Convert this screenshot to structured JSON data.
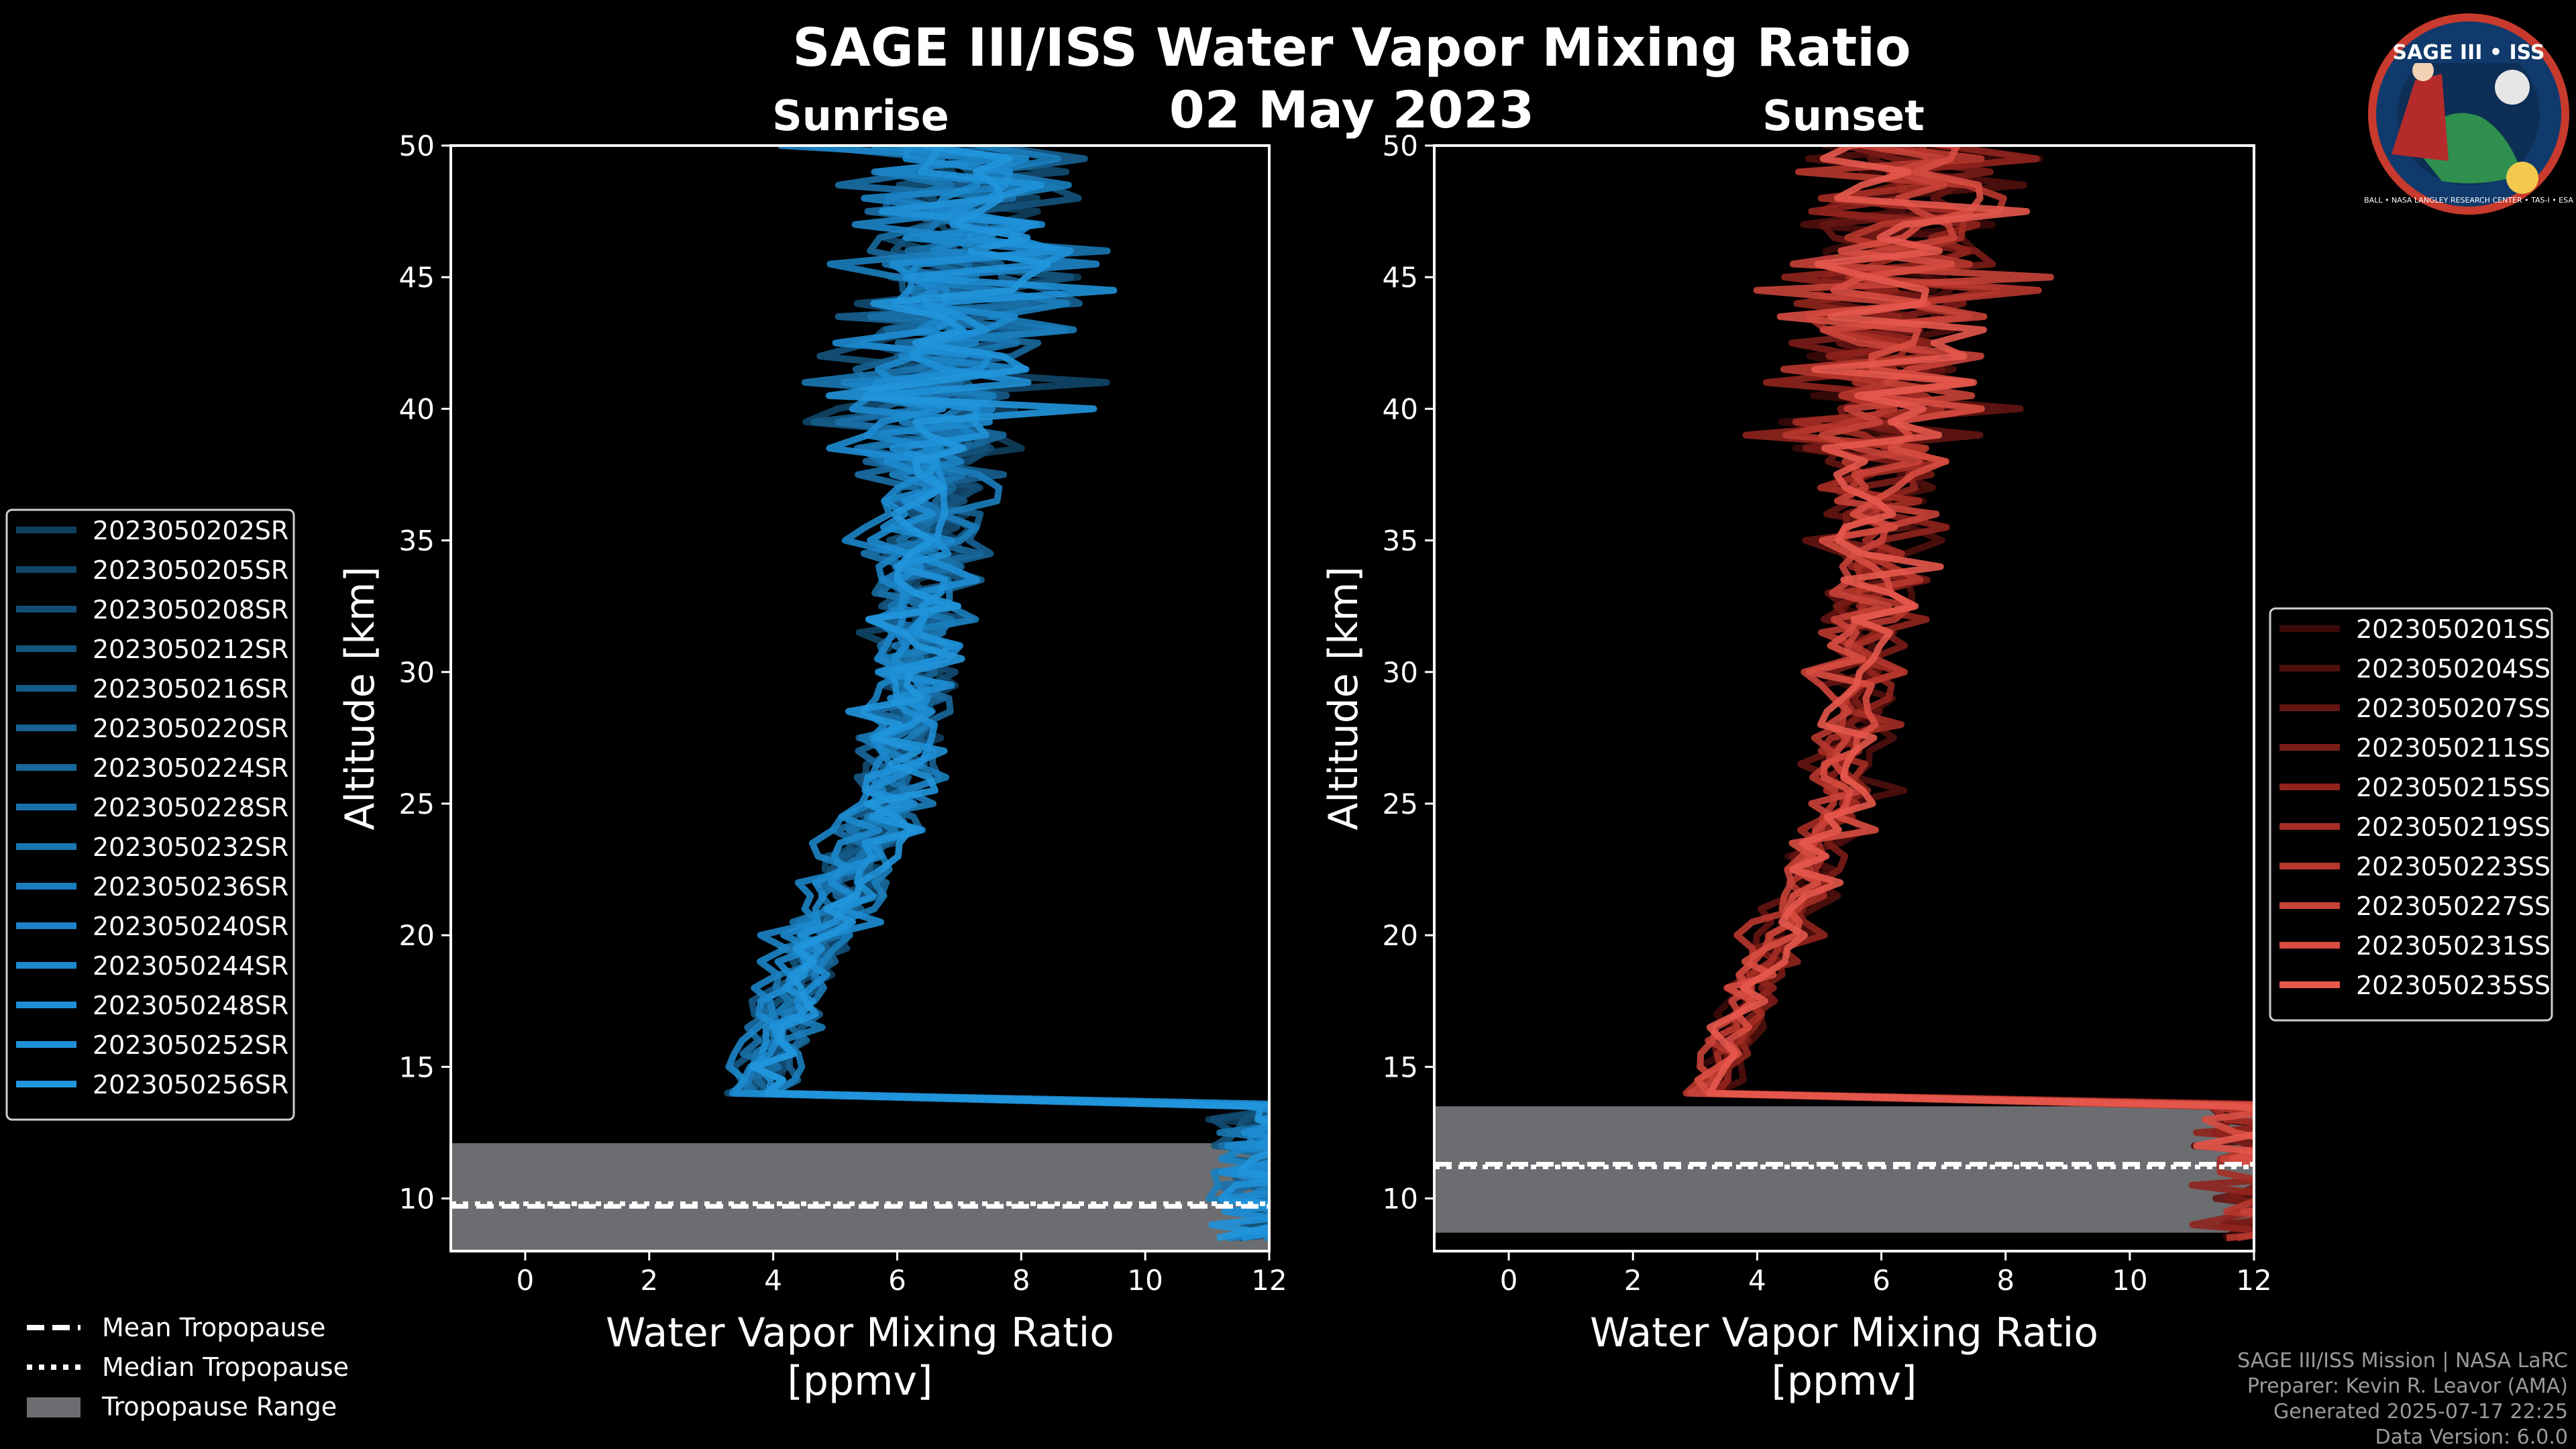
{
  "header": {
    "title": "SAGE III/ISS Water Vapor Mixing Ratio",
    "date": "02 May 2023"
  },
  "logo": {
    "text": "SAGE III • ISS",
    "ring_text": "BALL • NASA LANGLEY RESEARCH CENTER • TAS-I • ESA"
  },
  "footer": {
    "line1": "SAGE III/ISS Mission | NASA LaRC",
    "line2": "Preparer: Kevin R. Leavor (AMA)",
    "line3": "Generated 2025-07-17 22:25",
    "line4": "Data Version: 6.0.0"
  },
  "tropopause_legend": {
    "mean": "Mean Tropopause",
    "median": "Median Tropopause",
    "range": "Tropopause Range"
  },
  "colors": {
    "background": "#000000",
    "sunrise": "#1e8fd6",
    "sunset": "#e0554a",
    "tropopause_fill": "#6b6d70"
  },
  "chart_data": [
    {
      "type": "line",
      "panel": "sunrise",
      "title": "Sunrise",
      "xlabel": "Water Vapor Mixing Ratio\n[ppmv]",
      "ylabel": "Altitude [km]",
      "xlim": [
        -1.2,
        12
      ],
      "ylim": [
        8,
        50
      ],
      "xticks": [
        0,
        2,
        4,
        6,
        8,
        10,
        12
      ],
      "yticks": [
        10,
        15,
        20,
        25,
        30,
        35,
        40,
        45,
        50
      ],
      "tropopause": {
        "mean": 9.7,
        "median": 9.8,
        "range": [
          8.0,
          12.1
        ]
      },
      "series": [
        {
          "name": "2023050202SR",
          "color": "#0f3f5e"
        },
        {
          "name": "2023050205SR",
          "color": "#114668"
        },
        {
          "name": "2023050208SR",
          "color": "#124d73"
        },
        {
          "name": "2023050212SR",
          "color": "#14547d"
        },
        {
          "name": "2023050216SR",
          "color": "#155b88"
        },
        {
          "name": "2023050220SR",
          "color": "#176293"
        },
        {
          "name": "2023050224SR",
          "color": "#18699d"
        },
        {
          "name": "2023050228SR",
          "color": "#1970a8"
        },
        {
          "name": "2023050232SR",
          "color": "#1a77b2"
        },
        {
          "name": "2023050236SR",
          "color": "#1b7ebd"
        },
        {
          "name": "2023050240SR",
          "color": "#1c84c6"
        },
        {
          "name": "2023050244SR",
          "color": "#1d89ce"
        },
        {
          "name": "2023050248SR",
          "color": "#1e8dd4"
        },
        {
          "name": "2023050252SR",
          "color": "#1f91d8"
        },
        {
          "name": "2023050256SR",
          "color": "#2196dd"
        }
      ]
    },
    {
      "type": "line",
      "panel": "sunset",
      "title": "Sunset",
      "xlabel": "Water Vapor Mixing Ratio\n[ppmv]",
      "ylabel": "Altitude [km]",
      "xlim": [
        -1.2,
        12
      ],
      "ylim": [
        8,
        50
      ],
      "xticks": [
        0,
        2,
        4,
        6,
        8,
        10,
        12
      ],
      "yticks": [
        10,
        15,
        20,
        25,
        30,
        35,
        40,
        45,
        50
      ],
      "tropopause": {
        "mean": 11.3,
        "median": 11.2,
        "range": [
          8.7,
          13.5
        ]
      },
      "series": [
        {
          "name": "2023050201SS",
          "color": "#3a0a09"
        },
        {
          "name": "2023050204SS",
          "color": "#4f0f0d"
        },
        {
          "name": "2023050207SS",
          "color": "#641512"
        },
        {
          "name": "2023050211SS",
          "color": "#7a1c17"
        },
        {
          "name": "2023050215SS",
          "color": "#90241d"
        },
        {
          "name": "2023050219SS",
          "color": "#a52d25"
        },
        {
          "name": "2023050223SS",
          "color": "#b8372e"
        },
        {
          "name": "2023050227SS",
          "color": "#c94238"
        },
        {
          "name": "2023050231SS",
          "color": "#d84c41"
        },
        {
          "name": "2023050235SS",
          "color": "#e5584c"
        }
      ]
    }
  ]
}
